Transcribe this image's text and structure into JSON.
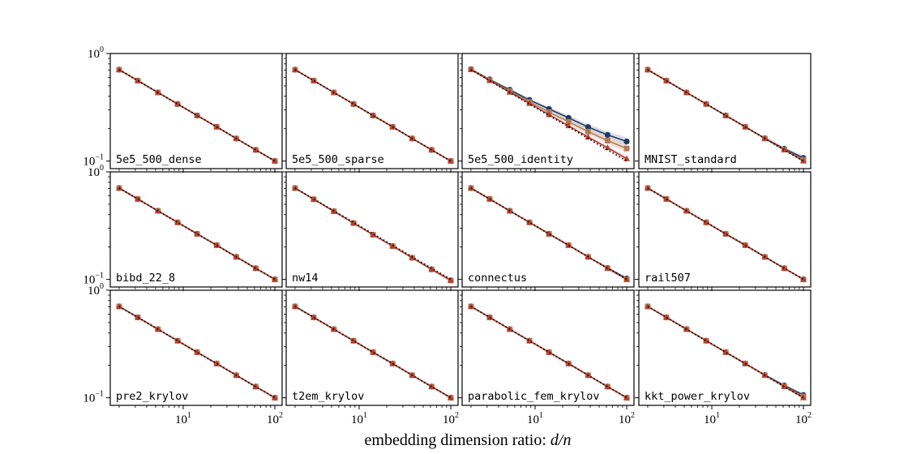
{
  "chart_data": {
    "type": "line",
    "xscale": "log",
    "yscale": "log",
    "xlim": [
      1.6,
      120
    ],
    "ylim": [
      0.085,
      1.0
    ],
    "xlabel_parts": [
      "embedding dimension ratio: ",
      "d",
      "/",
      "n"
    ],
    "x_ticks": [
      {
        "value": 10,
        "base": "10",
        "exp": "1"
      },
      {
        "value": 100,
        "base": "10",
        "exp": "2"
      }
    ],
    "y_ticks": [
      {
        "value": 1.0,
        "base": "10",
        "exp": "0"
      },
      {
        "value": 0.1,
        "base": "10",
        "exp": "−1"
      }
    ],
    "x": [
      2,
      3.2,
      5.3,
      8.7,
      14.2,
      23.2,
      37.9,
      61.8,
      100
    ],
    "reference": {
      "name": "reference",
      "color": "#000000",
      "values": [
        0.707,
        0.559,
        0.434,
        0.339,
        0.265,
        0.208,
        0.162,
        0.127,
        0.1
      ]
    },
    "series_styles": [
      {
        "name": "series-circle",
        "color": "#1f3a5f",
        "marker": "circle",
        "band": "#aab4c8"
      },
      {
        "name": "series-square",
        "color": "#b07a5a",
        "marker": "square",
        "band": "#d9b8a6"
      },
      {
        "name": "series-triangle",
        "color": "#b8402e",
        "marker": "triangle",
        "band": "#e0a8a0"
      }
    ],
    "panels": [
      {
        "name": "5e5_500_dense",
        "series": [
          [
            0.707,
            0.559,
            0.434,
            0.339,
            0.265,
            0.208,
            0.162,
            0.127,
            0.1
          ],
          [
            0.707,
            0.559,
            0.434,
            0.339,
            0.265,
            0.208,
            0.162,
            0.127,
            0.1
          ],
          [
            0.707,
            0.559,
            0.434,
            0.339,
            0.265,
            0.208,
            0.162,
            0.127,
            0.1
          ]
        ]
      },
      {
        "name": "5e5_500_sparse",
        "series": [
          [
            0.707,
            0.559,
            0.434,
            0.339,
            0.265,
            0.208,
            0.162,
            0.127,
            0.1
          ],
          [
            0.707,
            0.559,
            0.434,
            0.339,
            0.265,
            0.208,
            0.162,
            0.127,
            0.1
          ],
          [
            0.707,
            0.559,
            0.434,
            0.339,
            0.265,
            0.208,
            0.162,
            0.127,
            0.1
          ]
        ]
      },
      {
        "name": "5e5_500_identity",
        "series": [
          [
            0.715,
            0.575,
            0.46,
            0.37,
            0.305,
            0.252,
            0.207,
            0.175,
            0.152
          ],
          [
            0.712,
            0.567,
            0.448,
            0.355,
            0.285,
            0.232,
            0.188,
            0.155,
            0.131
          ],
          [
            0.708,
            0.56,
            0.437,
            0.343,
            0.27,
            0.213,
            0.167,
            0.133,
            0.105
          ]
        ]
      },
      {
        "name": "MNIST_standard",
        "series": [
          [
            0.707,
            0.559,
            0.434,
            0.339,
            0.265,
            0.208,
            0.163,
            0.13,
            0.107
          ],
          [
            0.707,
            0.559,
            0.434,
            0.339,
            0.265,
            0.208,
            0.162,
            0.128,
            0.103
          ],
          [
            0.707,
            0.559,
            0.434,
            0.339,
            0.265,
            0.208,
            0.162,
            0.127,
            0.1
          ]
        ]
      },
      {
        "name": "bibd_22_8",
        "series": [
          [
            0.707,
            0.559,
            0.434,
            0.339,
            0.265,
            0.208,
            0.162,
            0.127,
            0.1
          ],
          [
            0.707,
            0.559,
            0.434,
            0.339,
            0.265,
            0.208,
            0.162,
            0.127,
            0.1
          ],
          [
            0.707,
            0.559,
            0.434,
            0.339,
            0.265,
            0.208,
            0.162,
            0.127,
            0.1
          ]
        ]
      },
      {
        "name": "nw14",
        "series": [
          [
            0.707,
            0.556,
            0.43,
            0.334,
            0.26,
            0.204,
            0.159,
            0.124,
            0.098
          ],
          [
            0.707,
            0.556,
            0.43,
            0.334,
            0.26,
            0.204,
            0.159,
            0.124,
            0.098
          ],
          [
            0.707,
            0.556,
            0.43,
            0.334,
            0.26,
            0.204,
            0.159,
            0.124,
            0.098
          ]
        ]
      },
      {
        "name": "connectus",
        "series": [
          [
            0.707,
            0.559,
            0.434,
            0.339,
            0.265,
            0.208,
            0.162,
            0.128,
            0.102
          ],
          [
            0.707,
            0.559,
            0.434,
            0.339,
            0.265,
            0.208,
            0.162,
            0.127,
            0.1
          ],
          [
            0.707,
            0.559,
            0.434,
            0.339,
            0.265,
            0.208,
            0.162,
            0.127,
            0.1
          ]
        ]
      },
      {
        "name": "rail507",
        "series": [
          [
            0.707,
            0.559,
            0.434,
            0.339,
            0.265,
            0.208,
            0.162,
            0.127,
            0.1
          ],
          [
            0.707,
            0.559,
            0.434,
            0.339,
            0.265,
            0.208,
            0.162,
            0.127,
            0.1
          ],
          [
            0.707,
            0.559,
            0.434,
            0.339,
            0.265,
            0.208,
            0.162,
            0.127,
            0.1
          ]
        ]
      },
      {
        "name": "pre2_krylov",
        "series": [
          [
            0.707,
            0.559,
            0.434,
            0.339,
            0.265,
            0.208,
            0.162,
            0.127,
            0.1
          ],
          [
            0.707,
            0.559,
            0.434,
            0.339,
            0.265,
            0.208,
            0.162,
            0.127,
            0.1
          ],
          [
            0.707,
            0.559,
            0.434,
            0.339,
            0.265,
            0.208,
            0.162,
            0.127,
            0.1
          ]
        ]
      },
      {
        "name": "t2em_krylov",
        "series": [
          [
            0.707,
            0.559,
            0.434,
            0.339,
            0.265,
            0.208,
            0.162,
            0.127,
            0.1
          ],
          [
            0.707,
            0.559,
            0.434,
            0.339,
            0.265,
            0.208,
            0.162,
            0.127,
            0.1
          ],
          [
            0.707,
            0.559,
            0.434,
            0.339,
            0.265,
            0.208,
            0.162,
            0.127,
            0.1
          ]
        ]
      },
      {
        "name": "parabolic_fem_krylov",
        "series": [
          [
            0.707,
            0.559,
            0.434,
            0.339,
            0.265,
            0.208,
            0.162,
            0.127,
            0.1
          ],
          [
            0.707,
            0.559,
            0.434,
            0.339,
            0.265,
            0.208,
            0.162,
            0.127,
            0.1
          ],
          [
            0.707,
            0.559,
            0.434,
            0.339,
            0.265,
            0.208,
            0.162,
            0.127,
            0.1
          ]
        ]
      },
      {
        "name": "kkt_power_krylov",
        "series": [
          [
            0.707,
            0.559,
            0.434,
            0.339,
            0.265,
            0.208,
            0.163,
            0.13,
            0.106
          ],
          [
            0.707,
            0.559,
            0.434,
            0.339,
            0.265,
            0.208,
            0.162,
            0.128,
            0.103
          ],
          [
            0.707,
            0.559,
            0.434,
            0.339,
            0.265,
            0.208,
            0.162,
            0.127,
            0.1
          ]
        ]
      }
    ]
  }
}
